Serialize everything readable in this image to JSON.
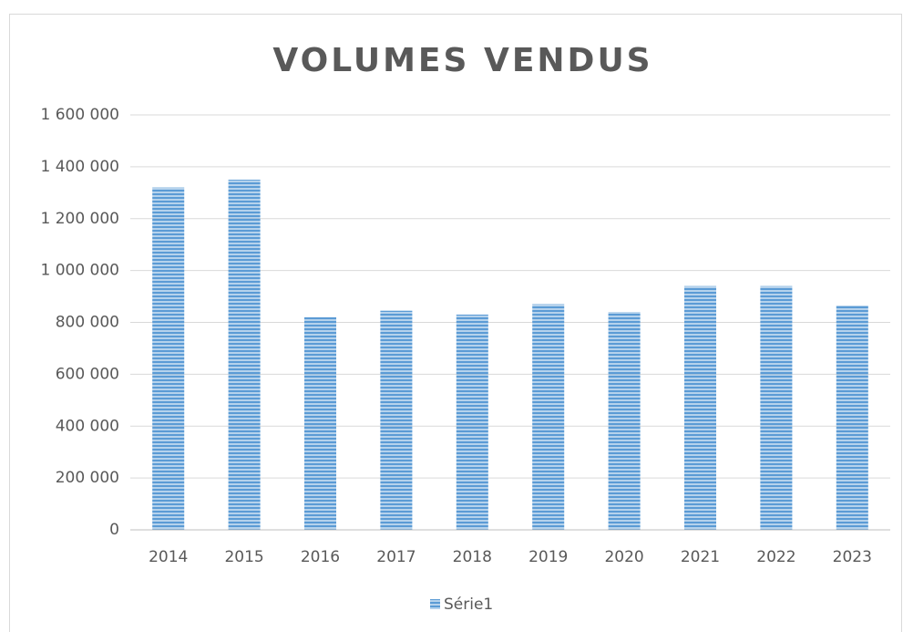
{
  "chart_data": {
    "type": "bar",
    "title": "VOLUMES VENDUS",
    "categories": [
      "2014",
      "2015",
      "2016",
      "2017",
      "2018",
      "2019",
      "2020",
      "2021",
      "2022",
      "2023"
    ],
    "series": [
      {
        "name": "Série1",
        "color": "#5b9bd5",
        "values": [
          1320000,
          1350000,
          820000,
          845000,
          830000,
          870000,
          840000,
          940000,
          940000,
          865000
        ]
      }
    ],
    "ylim": [
      0,
      1600000
    ],
    "yticks": [
      0,
      {
        "value": 200000,
        "label": "200 000"
      },
      {
        "value": 400000,
        "label": "400 000"
      },
      {
        "value": 600000,
        "label": "600 000"
      },
      {
        "value": 800000,
        "label": "800 000"
      },
      {
        "value": 1000000,
        "label": "1 000 000"
      },
      {
        "value": 1200000,
        "label": "1 200 000"
      },
      {
        "value": 1400000,
        "label": "1 400 000"
      },
      {
        "value": 1600000,
        "label": "1 600 000"
      }
    ],
    "grid": true,
    "legend": "bottom"
  }
}
